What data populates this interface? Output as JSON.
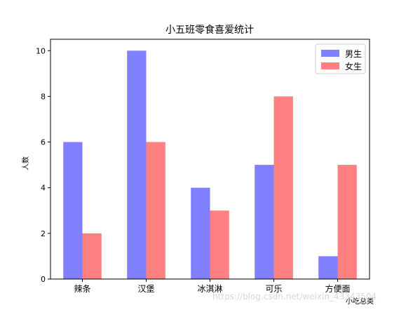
{
  "chart_data": {
    "type": "bar",
    "title": "小五班零食喜爱统计",
    "xlabel": "小吃总类",
    "ylabel": "人数",
    "categories": [
      "辣条",
      "汉堡",
      "冰淇淋",
      "可乐",
      "方便面"
    ],
    "series": [
      {
        "name": "男生",
        "values": [
          6,
          10,
          4,
          5,
          1
        ],
        "color": "#8080ff"
      },
      {
        "name": "女生",
        "values": [
          2,
          6,
          3,
          8,
          5
        ],
        "color": "#ff8080"
      }
    ],
    "ylim": [
      0,
      10.5
    ],
    "yticks": [
      0,
      2,
      4,
      6,
      8,
      10
    ],
    "grid": false,
    "legend_position": "top-right"
  },
  "watermark": "https://blog.csdn.net/weixin_43343504"
}
